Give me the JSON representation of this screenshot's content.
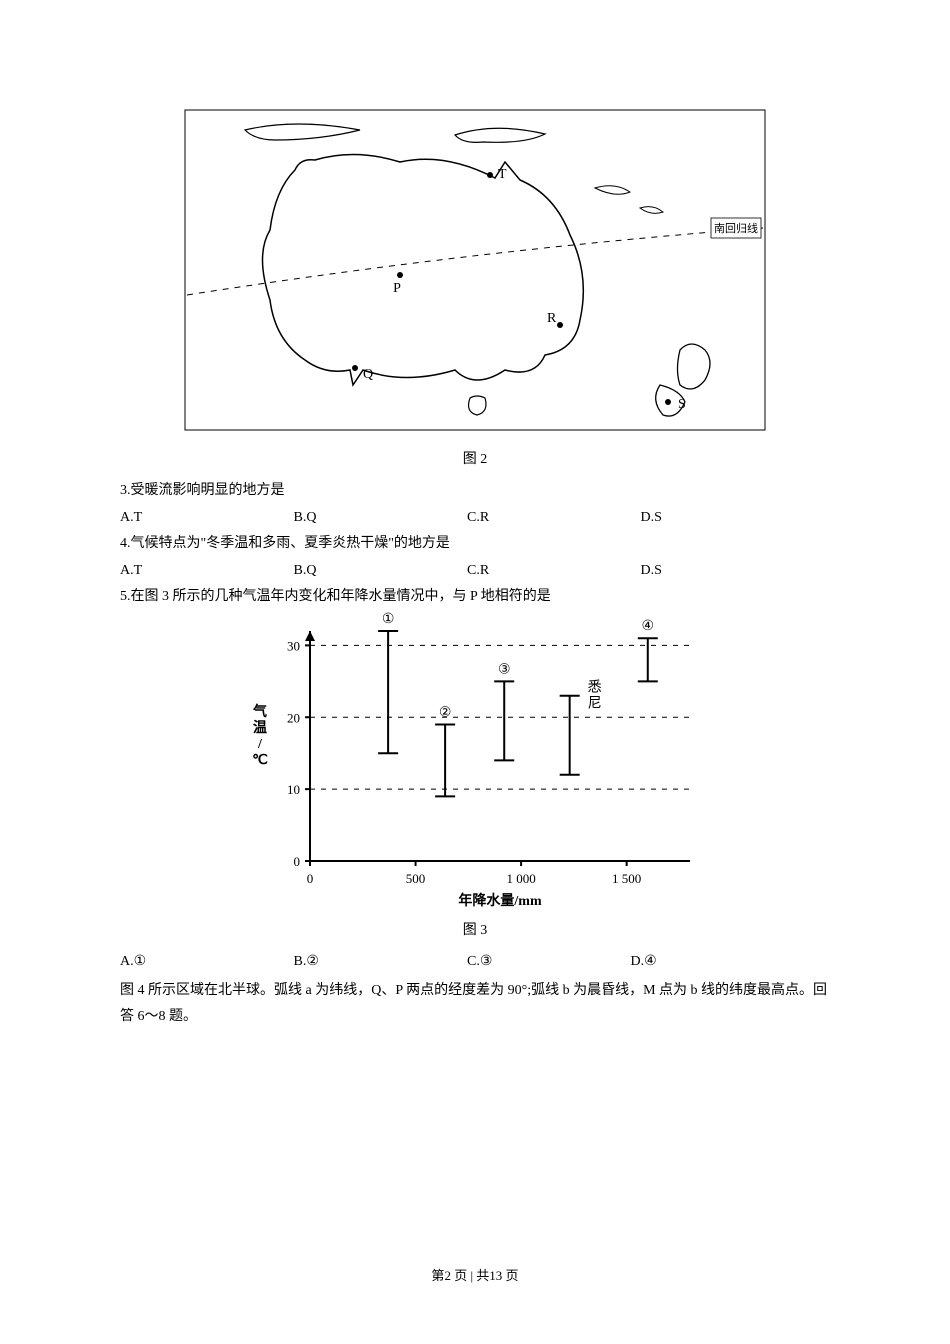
{
  "fig2": {
    "caption": "图 2",
    "tropic_label": "南回归线",
    "points": {
      "T": "T",
      "P": "P",
      "Q": "Q",
      "R": "R",
      "S": "S"
    },
    "line_color": "#000000",
    "bg": "#ffffff"
  },
  "q3": {
    "text": "3.受暖流影响明显的地方是",
    "opts": {
      "A": "A.T",
      "B": "B.Q",
      "C": "C.R",
      "D": "D.S"
    },
    "opt_widths": [
      170,
      170,
      170,
      120
    ]
  },
  "q4": {
    "text": "4.气候特点为\"冬季温和多雨、夏季炎热干燥\"的地方是",
    "opts": {
      "A": "A.T",
      "B": "B.Q",
      "C": "C.R",
      "D": "D.S"
    },
    "opt_widths": [
      170,
      170,
      170,
      120
    ]
  },
  "q5": {
    "text": "5.在图 3 所示的几种气温年内变化和年降水量情况中，与 P 地相符的是"
  },
  "fig3": {
    "caption": "图 3",
    "xlabel": "年降水量/mm",
    "ylabel": "气温/℃",
    "xlim": [
      0,
      1800
    ],
    "ylim": [
      0,
      32
    ],
    "xticks": [
      0,
      500,
      1000,
      1500
    ],
    "yticks": [
      0,
      10,
      20,
      30
    ],
    "axis_color": "#000000",
    "grid_dash": "5,6",
    "label_fontsize": 14,
    "tick_fontsize": 13,
    "ref_label": "悉尼",
    "series": [
      {
        "id": "①",
        "x": 370,
        "y_low": 15,
        "y_high": 32
      },
      {
        "id": "②",
        "x": 640,
        "y_low": 9,
        "y_high": 19
      },
      {
        "id": "③",
        "x": 920,
        "y_low": 14,
        "y_high": 25
      },
      {
        "id": "ref",
        "x": 1230,
        "y_low": 12,
        "y_high": 23
      },
      {
        "id": "④",
        "x": 1600,
        "y_low": 25,
        "y_high": 31
      }
    ],
    "bar_stroke_width": 2,
    "cap_half": 10
  },
  "q5opts": {
    "opts": {
      "A": "A.①",
      "B": "B.②",
      "C": "C.③",
      "D": "D.④"
    },
    "opt_widths": [
      170,
      170,
      160,
      120
    ]
  },
  "para6": "图 4 所示区域在北半球。弧线 a 为纬线，Q、P 两点的经度差为 90°;弧线 b 为晨昏线，M 点为 b 线的纬度最高点。回答 6～8 题。",
  "footer": {
    "prefix": "第",
    "page": "2",
    "mid": " 页 | 共",
    "total": "13",
    "suffix": " 页"
  }
}
